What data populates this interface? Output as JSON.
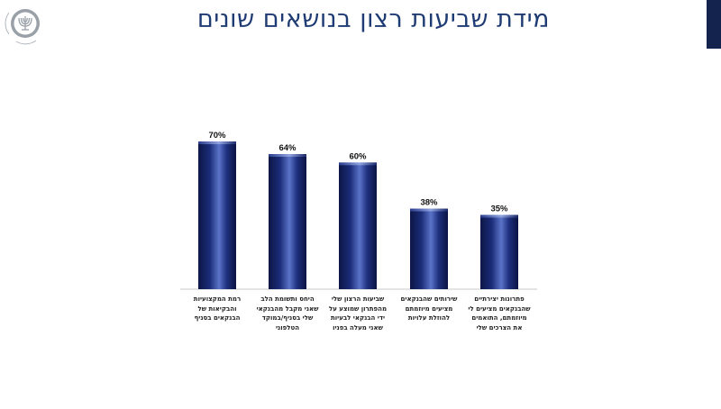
{
  "page": {
    "title": "מידת שביעות רצון בנושאים שונים",
    "accent_color": "#14234d",
    "title_color": "#1f3b73"
  },
  "logo": {
    "name": "bank-of-israel-emblem",
    "text": "BANK OF ISRAEL בנק ישראל"
  },
  "chart_data": {
    "type": "bar",
    "categories": [
      "רמת המקצועיות\nוהבקיאות של\nהבנקאים בסניף",
      "היחס ותשומת הלב\nשאני מקבל מהבנקאי\nשלי בסניף/במוקד\nהטלפוני",
      "שביעות הרצון שלי\nמהפתרון שמוצע על\nידי הבנקאי לבעיות\nשאני מעלה בפניו",
      "שירותים שהבנקאים\nמציעים מיוזמתם\nלהוזלת עלויות",
      "פתרונות יצירתיים\nשהבנקאים מציעים לי\nמיוזמתם, התואמים\nאת הצרכים שלי"
    ],
    "values": [
      70,
      64,
      60,
      38,
      35
    ],
    "data_labels": [
      "70%",
      "64%",
      "60%",
      "38%",
      "35%"
    ],
    "ylim": [
      0,
      80
    ],
    "bar_color": "#1a2a6c",
    "grid": false,
    "legend": "none"
  }
}
